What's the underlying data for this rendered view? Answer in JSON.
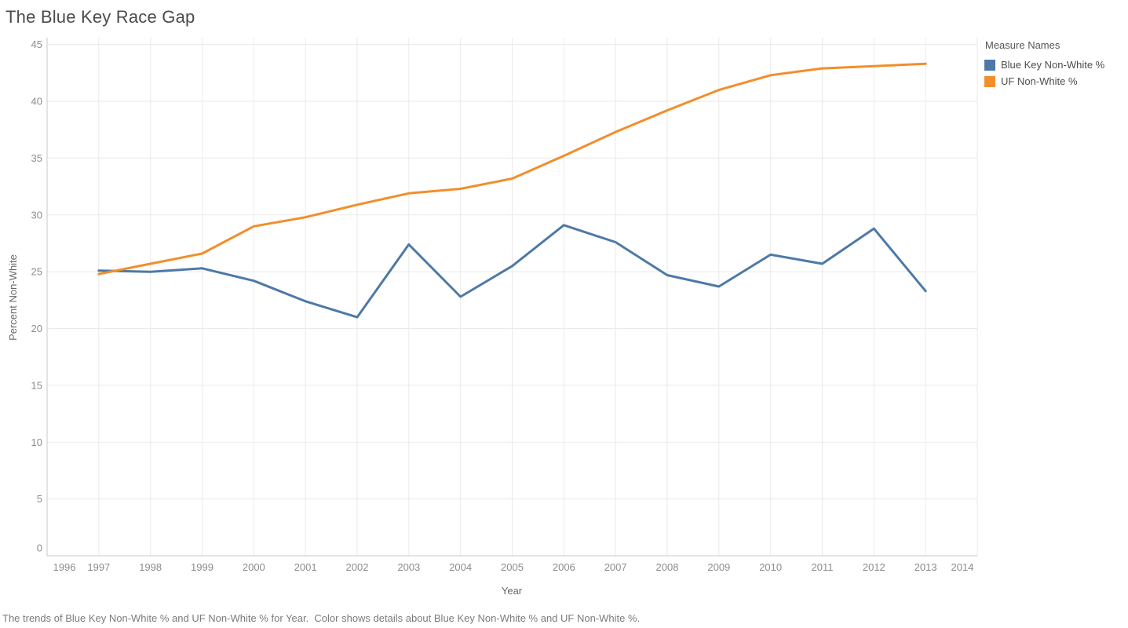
{
  "title": "The Blue Key Race Gap",
  "caption": "The trends of Blue Key Non-White % and UF Non-White % for Year.  Color shows details about Blue Key Non-White % and UF Non-White %.",
  "legend": {
    "title": "Measure Names"
  },
  "chart_data": {
    "type": "line",
    "title": "The Blue Key Race Gap",
    "xlabel": "Year",
    "ylabel": "Percent Non-White",
    "xlim": [
      1996,
      2014
    ],
    "ylim": [
      0,
      45.6
    ],
    "grid": true,
    "legend_position": "top-right",
    "x_ticks": [
      1996,
      1997,
      1998,
      1999,
      2000,
      2001,
      2002,
      2003,
      2004,
      2005,
      2006,
      2007,
      2008,
      2009,
      2010,
      2011,
      2012,
      2013,
      2014
    ],
    "y_ticks": [
      0,
      5,
      10,
      15,
      20,
      25,
      30,
      35,
      40,
      45
    ],
    "x": [
      1997,
      1998,
      1999,
      2000,
      2001,
      2002,
      2003,
      2004,
      2005,
      2006,
      2007,
      2008,
      2009,
      2010,
      2011,
      2012,
      2013
    ],
    "series": [
      {
        "name": "Blue Key Non-White %",
        "color": "#4E79A7",
        "values": [
          25.1,
          25.0,
          25.3,
          24.2,
          22.4,
          21.0,
          27.4,
          22.8,
          25.5,
          29.1,
          27.6,
          24.7,
          23.7,
          26.5,
          25.7,
          28.8,
          23.3
        ]
      },
      {
        "name": "UF Non-White %",
        "color": "#F28E2B",
        "values": [
          24.8,
          25.7,
          26.6,
          29.0,
          29.8,
          30.9,
          31.9,
          32.3,
          33.2,
          35.2,
          37.3,
          39.2,
          41.0,
          42.3,
          42.9,
          43.1,
          43.3
        ]
      }
    ]
  }
}
